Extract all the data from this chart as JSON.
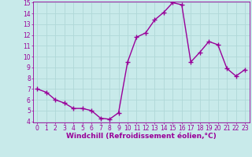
{
  "x": [
    0,
    1,
    2,
    3,
    4,
    5,
    6,
    7,
    8,
    9,
    10,
    11,
    12,
    13,
    14,
    15,
    16,
    17,
    18,
    19,
    20,
    21,
    22,
    23
  ],
  "y": [
    7.0,
    6.7,
    6.0,
    5.7,
    5.2,
    5.2,
    5.0,
    4.3,
    4.2,
    4.8,
    9.5,
    11.8,
    12.2,
    13.4,
    14.1,
    15.0,
    14.8,
    9.5,
    10.4,
    11.4,
    11.1,
    8.9,
    8.2,
    8.8
  ],
  "line_color": "#990099",
  "marker": "+",
  "marker_size": 4,
  "marker_lw": 1.0,
  "xlabel": "Windchill (Refroidissement éolien,°C)",
  "xlabel_fontsize": 6.5,
  "ylim": [
    4,
    15
  ],
  "xlim": [
    -0.5,
    23.5
  ],
  "yticks": [
    4,
    5,
    6,
    7,
    8,
    9,
    10,
    11,
    12,
    13,
    14,
    15
  ],
  "xticks": [
    0,
    1,
    2,
    3,
    4,
    5,
    6,
    7,
    8,
    9,
    10,
    11,
    12,
    13,
    14,
    15,
    16,
    17,
    18,
    19,
    20,
    21,
    22,
    23
  ],
  "bg_color": "#c8eaea",
  "grid_color": "#b0d8d8",
  "tick_fontsize": 5.5,
  "line_width": 1.0
}
